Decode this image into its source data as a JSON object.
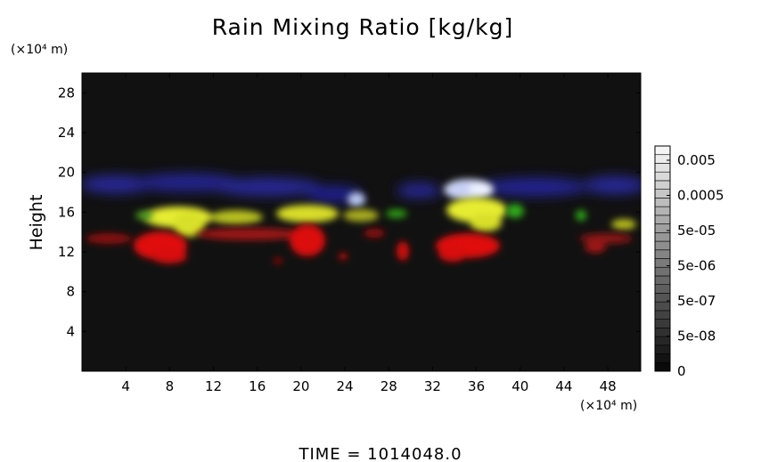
{
  "chart_data": {
    "type": "heatmap",
    "title": "Rain Mixing Ratio [kg/kg]",
    "ylabel": "Height",
    "y_units": "(×10⁴ m)",
    "x_units": "(×10⁴ m)",
    "xlim": [
      0,
      51
    ],
    "ylim": [
      0,
      30
    ],
    "xticks": [
      "4",
      "8",
      "12",
      "16",
      "20",
      "24",
      "28",
      "32",
      "36",
      "40",
      "44",
      "48"
    ],
    "yticks": [
      "4",
      "8",
      "12",
      "16",
      "20",
      "24",
      "28"
    ],
    "colorbar": {
      "labels": [
        "0.005",
        "0.0005",
        "5e-05",
        "5e-06",
        "5e-07",
        "5e-08",
        "0"
      ]
    },
    "footer": "TIME = 1014048.0",
    "colors": {
      "background": "#111111",
      "red": "#e01010",
      "yellow": "#e6ec30",
      "green": "#33a81c",
      "blue": "#2a2aa8",
      "white": "#e8ecff"
    }
  }
}
